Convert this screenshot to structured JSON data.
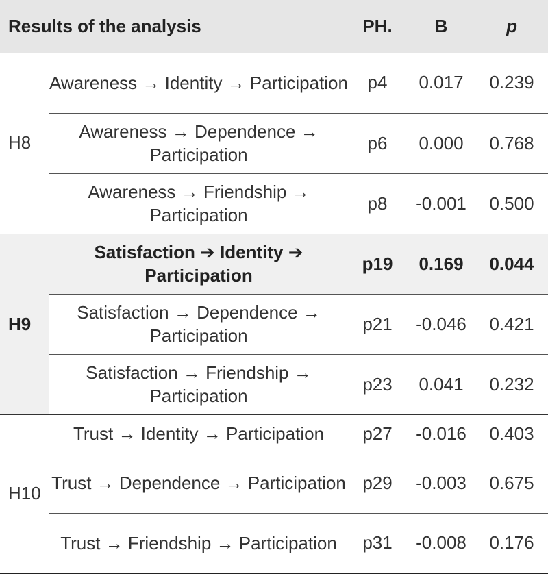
{
  "header": {
    "title": "Results of the analysis",
    "ph": "PH.",
    "b": "B",
    "p": "p"
  },
  "groups": [
    {
      "label": "H8",
      "rows": [
        {
          "path": "Awareness → Identity → Participation",
          "ph": "p4",
          "b": "0.017",
          "p": "0.239"
        },
        {
          "path": "Awareness → Dependence → Participation",
          "ph": "p6",
          "b": "0.000",
          "p": "0.768"
        },
        {
          "path": "Awareness → Friendship → Participation",
          "ph": "p8",
          "b": "-0.001",
          "p": "0.500"
        }
      ]
    },
    {
      "label": "H9",
      "rows": [
        {
          "path": "Satisfaction ➔ Identity ➔ Participation",
          "ph": "p19",
          "b": "0.169",
          "p": "0.044"
        },
        {
          "path": "Satisfaction → Dependence → Participation",
          "ph": "p21",
          "b": "-0.046",
          "p": "0.421"
        },
        {
          "path": "Satisfaction → Friendship → Participation",
          "ph": "p23",
          "b": "0.041",
          "p": "0.232"
        }
      ]
    },
    {
      "label": "H10",
      "rows": [
        {
          "path": "Trust → Identity → Participation",
          "ph": "p27",
          "b": "-0.016",
          "p": "0.403"
        },
        {
          "path": "Trust → Dependence → Participation",
          "ph": "p29",
          "b": "-0.003",
          "p": "0.675"
        },
        {
          "path": "Trust → Friendship → Participation",
          "ph": "p31",
          "b": "-0.008",
          "p": "0.176"
        }
      ]
    }
  ]
}
